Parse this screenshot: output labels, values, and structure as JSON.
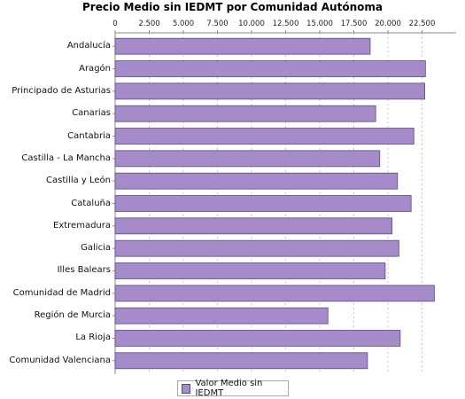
{
  "chart_data": {
    "type": "bar",
    "orientation": "horizontal",
    "title": "Precio Medio sin IEDMT por Comunidad Autónoma",
    "xlabel": "",
    "ylabel": "",
    "xlim": [
      0,
      25000
    ],
    "x_ticks": [
      "0",
      "2.500",
      "5.000",
      "7.500",
      "10.000",
      "12.500",
      "15.000",
      "17.500",
      "20.000",
      "22.500"
    ],
    "x_tick_values": [
      0,
      2500,
      5000,
      7500,
      10000,
      12500,
      15000,
      17500,
      20000,
      22500
    ],
    "axis_position": "top",
    "grid": true,
    "legend": "bottom",
    "categories": [
      "Andalucía",
      "Aragón",
      "Principado de Asturias",
      "Canarias",
      "Cantabria",
      "Castilla - La Mancha",
      "Castilla y León",
      "Cataluña",
      "Extremadura",
      "Galicia",
      "Illes Balears",
      "Comunidad de Madrid",
      "Región de Murcia",
      "La Rioja",
      "Comunidad Valenciana"
    ],
    "series": [
      {
        "name": "Valor Medio sin IEDMT",
        "color": "#a58bc9",
        "values": [
          18700,
          22750,
          22700,
          19100,
          21900,
          19400,
          20700,
          21700,
          20300,
          20800,
          19800,
          23400,
          15600,
          20900,
          18500
        ]
      }
    ]
  }
}
